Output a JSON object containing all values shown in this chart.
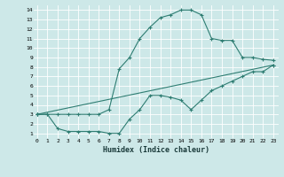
{
  "bg_color": "#cde8e8",
  "grid_color": "#b0d8d8",
  "line_color": "#2e7d72",
  "line1_x": [
    0,
    1,
    2,
    3,
    4,
    5,
    6,
    7,
    8,
    9,
    10,
    11,
    12,
    13,
    14,
    15,
    16,
    17,
    18,
    19,
    20,
    21,
    22,
    23
  ],
  "line1_y": [
    3,
    3,
    3,
    3,
    3,
    3,
    3,
    3.5,
    7.8,
    9.0,
    11.0,
    12.2,
    13.2,
    13.5,
    14.0,
    14.0,
    13.5,
    11.0,
    10.8,
    10.8,
    9.0,
    9.0,
    8.8,
    8.7
  ],
  "line2_x": [
    0,
    1,
    2,
    3,
    4,
    5,
    6,
    7,
    8,
    9,
    10,
    11,
    12,
    13,
    14,
    15,
    16,
    17,
    18,
    19,
    20,
    21,
    22,
    23
  ],
  "line2_y": [
    3.0,
    3.0,
    1.5,
    1.2,
    1.2,
    1.2,
    1.2,
    1.0,
    1.0,
    2.5,
    3.5,
    5.0,
    5.0,
    4.8,
    4.5,
    3.5,
    4.5,
    5.5,
    6.0,
    6.5,
    7.0,
    7.5,
    7.5,
    8.2
  ],
  "line3_x": [
    0,
    23
  ],
  "line3_y": [
    3.0,
    8.2
  ],
  "xlabel": "Humidex (Indice chaleur)",
  "xlim": [
    0,
    23
  ],
  "ylim": [
    1,
    14
  ],
  "yticks": [
    1,
    2,
    3,
    4,
    5,
    6,
    7,
    8,
    9,
    10,
    11,
    12,
    13,
    14
  ],
  "xticks": [
    0,
    1,
    2,
    3,
    4,
    5,
    6,
    7,
    8,
    9,
    10,
    11,
    12,
    13,
    14,
    15,
    16,
    17,
    18,
    19,
    20,
    21,
    22,
    23
  ]
}
